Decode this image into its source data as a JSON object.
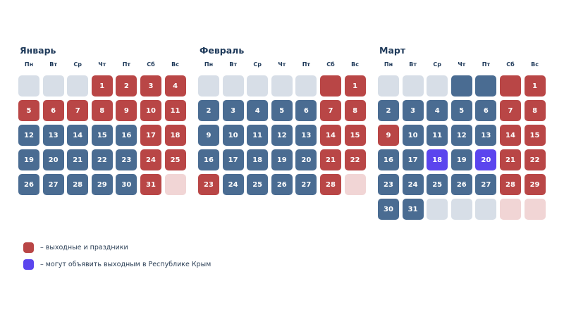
{
  "colors": {
    "weekday": "#4a6c92",
    "holiday": "#b94646",
    "empty": "#d7dee7",
    "empty_weekend": "#f1d5d5",
    "crimea": "#5b45ee"
  },
  "weekdays": [
    "Пн",
    "Вт",
    "Ср",
    "Чт",
    "Пт",
    "Сб",
    "Вс"
  ],
  "months": [
    {
      "name": "Январь",
      "cells": [
        {
          "d": "",
          "t": "e"
        },
        {
          "d": "",
          "t": "e"
        },
        {
          "d": "",
          "t": "e"
        },
        {
          "d": "1",
          "t": "h"
        },
        {
          "d": "2",
          "t": "h"
        },
        {
          "d": "3",
          "t": "h"
        },
        {
          "d": "4",
          "t": "h"
        },
        {
          "d": "5",
          "t": "h"
        },
        {
          "d": "6",
          "t": "h"
        },
        {
          "d": "7",
          "t": "h"
        },
        {
          "d": "8",
          "t": "h"
        },
        {
          "d": "9",
          "t": "h"
        },
        {
          "d": "10",
          "t": "h"
        },
        {
          "d": "11",
          "t": "h"
        },
        {
          "d": "12",
          "t": "n"
        },
        {
          "d": "13",
          "t": "n"
        },
        {
          "d": "14",
          "t": "n"
        },
        {
          "d": "15",
          "t": "n"
        },
        {
          "d": "16",
          "t": "n"
        },
        {
          "d": "17",
          "t": "h"
        },
        {
          "d": "18",
          "t": "h"
        },
        {
          "d": "19",
          "t": "n"
        },
        {
          "d": "20",
          "t": "n"
        },
        {
          "d": "21",
          "t": "n"
        },
        {
          "d": "22",
          "t": "n"
        },
        {
          "d": "23",
          "t": "n"
        },
        {
          "d": "24",
          "t": "h"
        },
        {
          "d": "25",
          "t": "h"
        },
        {
          "d": "26",
          "t": "n"
        },
        {
          "d": "27",
          "t": "n"
        },
        {
          "d": "28",
          "t": "n"
        },
        {
          "d": "29",
          "t": "n"
        },
        {
          "d": "30",
          "t": "n"
        },
        {
          "d": "31",
          "t": "h"
        },
        {
          "d": "",
          "t": "ep"
        }
      ]
    },
    {
      "name": "Февраль",
      "cells": [
        {
          "d": "",
          "t": "e"
        },
        {
          "d": "",
          "t": "e"
        },
        {
          "d": "",
          "t": "e"
        },
        {
          "d": "",
          "t": "e"
        },
        {
          "d": "",
          "t": "e"
        },
        {
          "d": "",
          "t": "er"
        },
        {
          "d": "1",
          "t": "h"
        },
        {
          "d": "2",
          "t": "n"
        },
        {
          "d": "3",
          "t": "n"
        },
        {
          "d": "4",
          "t": "n"
        },
        {
          "d": "5",
          "t": "n"
        },
        {
          "d": "6",
          "t": "n"
        },
        {
          "d": "7",
          "t": "h"
        },
        {
          "d": "8",
          "t": "h"
        },
        {
          "d": "9",
          "t": "n"
        },
        {
          "d": "10",
          "t": "n"
        },
        {
          "d": "11",
          "t": "n"
        },
        {
          "d": "12",
          "t": "n"
        },
        {
          "d": "13",
          "t": "n"
        },
        {
          "d": "14",
          "t": "h"
        },
        {
          "d": "15",
          "t": "h"
        },
        {
          "d": "16",
          "t": "n"
        },
        {
          "d": "17",
          "t": "n"
        },
        {
          "d": "18",
          "t": "n"
        },
        {
          "d": "19",
          "t": "n"
        },
        {
          "d": "20",
          "t": "n"
        },
        {
          "d": "21",
          "t": "h"
        },
        {
          "d": "22",
          "t": "h"
        },
        {
          "d": "23",
          "t": "h"
        },
        {
          "d": "24",
          "t": "n"
        },
        {
          "d": "25",
          "t": "n"
        },
        {
          "d": "26",
          "t": "n"
        },
        {
          "d": "27",
          "t": "n"
        },
        {
          "d": "28",
          "t": "h"
        },
        {
          "d": "",
          "t": "ep"
        }
      ]
    },
    {
      "name": "Март",
      "cells": [
        {
          "d": "",
          "t": "e"
        },
        {
          "d": "",
          "t": "e"
        },
        {
          "d": "",
          "t": "e"
        },
        {
          "d": "",
          "t": "eb"
        },
        {
          "d": "",
          "t": "eb"
        },
        {
          "d": "",
          "t": "er"
        },
        {
          "d": "1",
          "t": "h"
        },
        {
          "d": "2",
          "t": "n"
        },
        {
          "d": "3",
          "t": "n"
        },
        {
          "d": "4",
          "t": "n"
        },
        {
          "d": "5",
          "t": "n"
        },
        {
          "d": "6",
          "t": "n"
        },
        {
          "d": "7",
          "t": "h"
        },
        {
          "d": "8",
          "t": "h"
        },
        {
          "d": "9",
          "t": "h"
        },
        {
          "d": "10",
          "t": "n"
        },
        {
          "d": "11",
          "t": "n"
        },
        {
          "d": "12",
          "t": "n"
        },
        {
          "d": "13",
          "t": "n"
        },
        {
          "d": "14",
          "t": "h"
        },
        {
          "d": "15",
          "t": "h"
        },
        {
          "d": "16",
          "t": "n"
        },
        {
          "d": "17",
          "t": "n"
        },
        {
          "d": "18",
          "t": "p"
        },
        {
          "d": "19",
          "t": "n"
        },
        {
          "d": "20",
          "t": "p"
        },
        {
          "d": "21",
          "t": "h"
        },
        {
          "d": "22",
          "t": "h"
        },
        {
          "d": "23",
          "t": "n"
        },
        {
          "d": "24",
          "t": "n"
        },
        {
          "d": "25",
          "t": "n"
        },
        {
          "d": "26",
          "t": "n"
        },
        {
          "d": "27",
          "t": "n"
        },
        {
          "d": "28",
          "t": "h"
        },
        {
          "d": "29",
          "t": "h"
        },
        {
          "d": "30",
          "t": "n"
        },
        {
          "d": "31",
          "t": "n"
        },
        {
          "d": "",
          "t": "e"
        },
        {
          "d": "",
          "t": "e"
        },
        {
          "d": "",
          "t": "e"
        },
        {
          "d": "",
          "t": "ep"
        },
        {
          "d": "",
          "t": "ep"
        }
      ]
    }
  ],
  "legend": [
    {
      "label": "– выходные и праздники",
      "color": "#b94646"
    },
    {
      "label": "– могут объявить выходным в Республике Крым",
      "color": "#5b45ee"
    }
  ]
}
